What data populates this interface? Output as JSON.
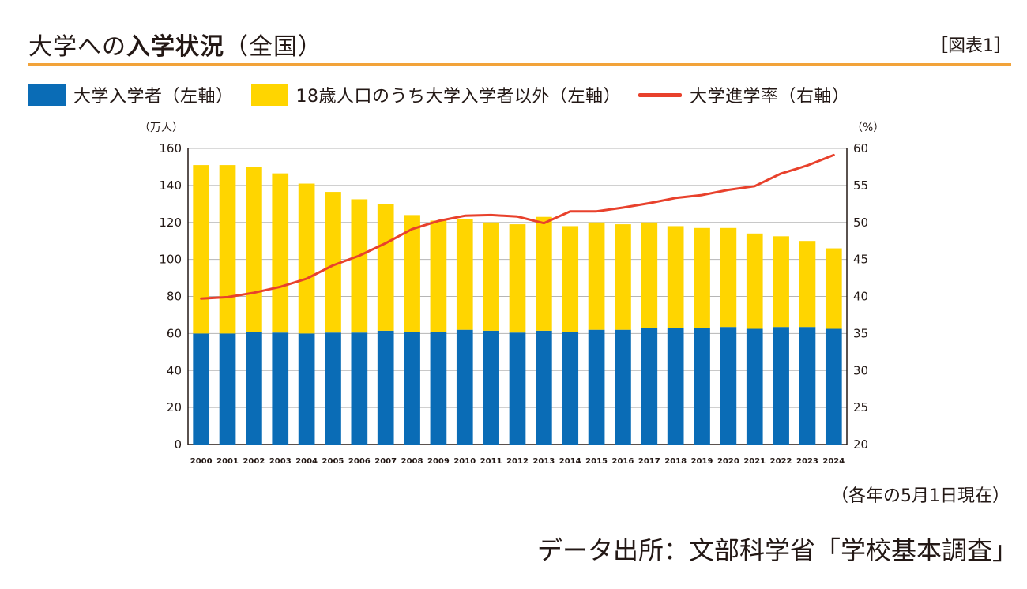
{
  "header": {
    "title_lead": "大学への",
    "title_bold": "入学状況",
    "title_tail": "（全国）",
    "fig_label": "［図表1］"
  },
  "legend": [
    {
      "label": "大学入学者（左軸）",
      "color": "#0a6cb6"
    },
    {
      "label": "18歳人口のうち大学入学者以外（左軸）",
      "color": "#ffd500"
    },
    {
      "label": "大学進学率（右軸）",
      "color": "#e8412c"
    }
  ],
  "note": "（各年の5月1日現在）",
  "source": "データ出所：文部科学省「学校基本調査」",
  "colors": {
    "enrolled": "#0a6cb6",
    "other": "#ffd500",
    "rate": "#e8412c",
    "accent": "#f2a33a"
  },
  "chart_data": {
    "type": "bar",
    "stacked": true,
    "categories": [
      "2000",
      "2001",
      "2002",
      "2003",
      "2004",
      "2005",
      "2006",
      "2007",
      "2008",
      "2009",
      "2010",
      "2011",
      "2012",
      "2013",
      "2014",
      "2015",
      "2016",
      "2017",
      "2018",
      "2019",
      "2020",
      "2021",
      "2022",
      "2023",
      "2024"
    ],
    "series": [
      {
        "name": "大学入学者（左軸）",
        "axis": "left",
        "values": [
          60,
          60,
          61,
          60.5,
          60,
          60.5,
          60.5,
          61.5,
          61,
          61,
          62,
          61.5,
          60.5,
          61.5,
          61,
          62,
          62,
          63,
          63,
          63,
          63.5,
          62.5,
          63.5,
          63.5,
          62.5
        ]
      },
      {
        "name": "18歳人口のうち大学入学者以外（左軸）",
        "axis": "left",
        "values": [
          91,
          91,
          89,
          86,
          81,
          76,
          72,
          68.5,
          63,
          60,
          60,
          58.5,
          58.5,
          61.5,
          57,
          58,
          57,
          57,
          55,
          54,
          53.5,
          51.5,
          49,
          46.5,
          43.5
        ]
      },
      {
        "name": "大学進学率（右軸）",
        "axis": "right",
        "type": "line",
        "values": [
          39.7,
          39.9,
          40.5,
          41.3,
          42.4,
          44.2,
          45.5,
          47.2,
          49.1,
          50.2,
          50.9,
          51.0,
          50.8,
          49.9,
          51.5,
          51.5,
          52.0,
          52.6,
          53.3,
          53.7,
          54.4,
          54.9,
          56.6,
          57.7,
          59.1
        ]
      }
    ],
    "left_axis": {
      "unit": "（万人）",
      "ylim": [
        0,
        160
      ],
      "ticks": [
        0,
        20,
        40,
        60,
        80,
        100,
        120,
        140,
        160
      ]
    },
    "right_axis": {
      "unit": "（%）",
      "ylim": [
        20,
        60
      ],
      "ticks": [
        20,
        25,
        30,
        35,
        40,
        45,
        50,
        55,
        60
      ]
    },
    "grid": true
  }
}
